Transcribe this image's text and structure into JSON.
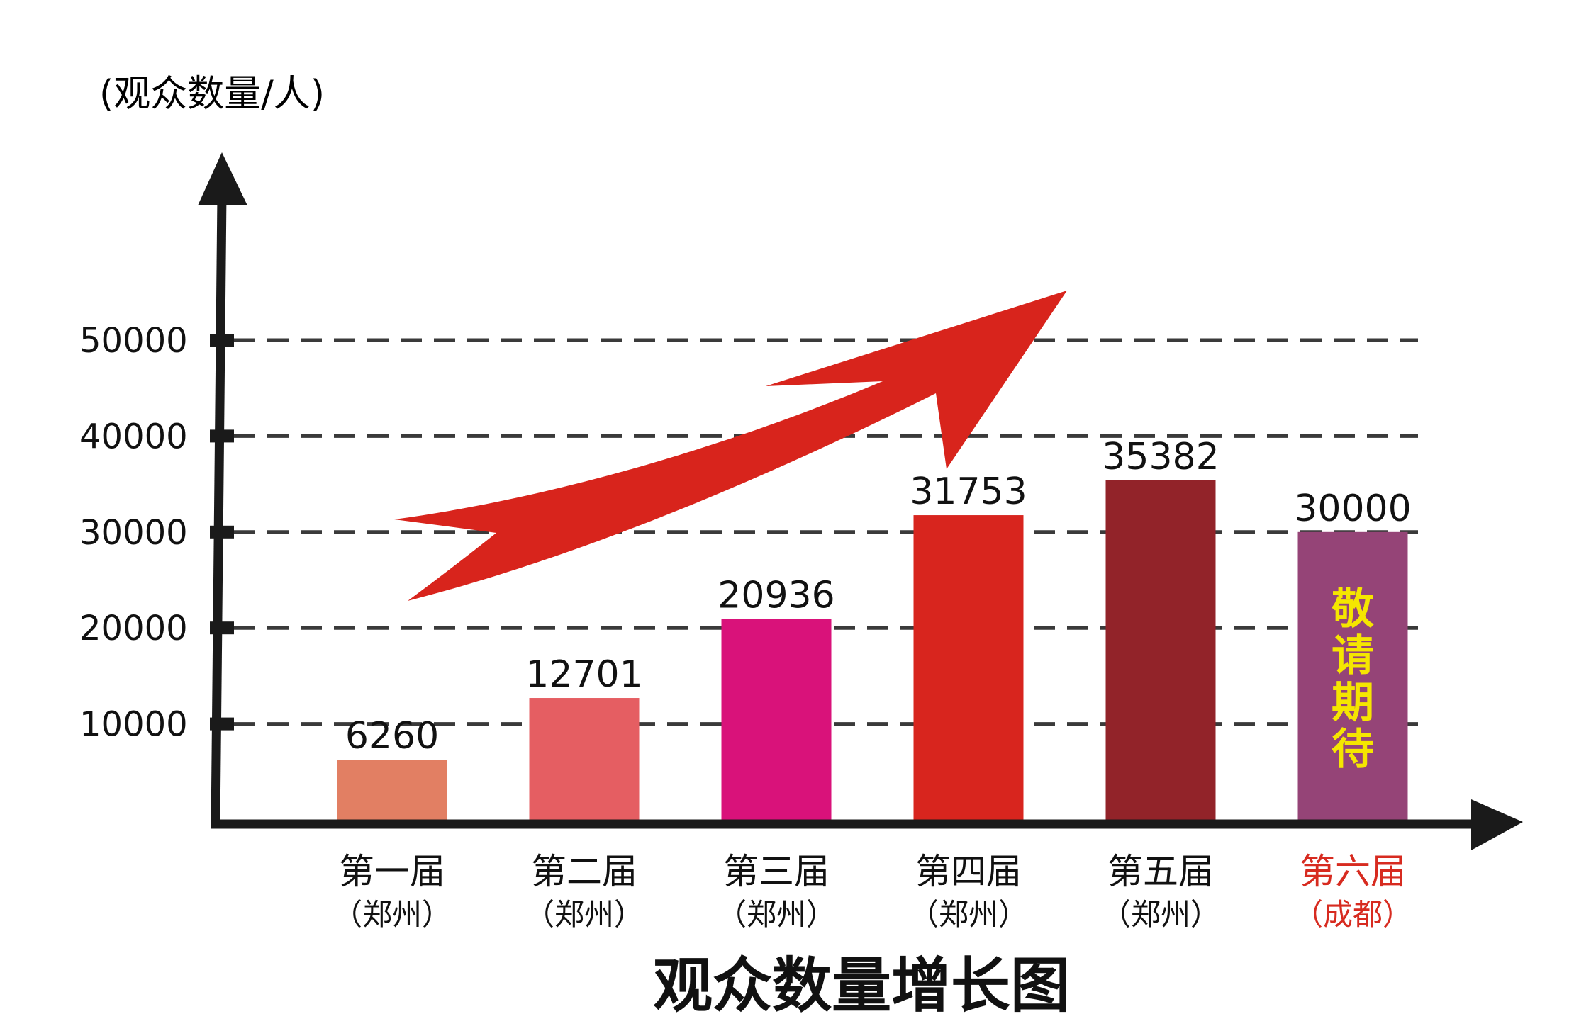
{
  "chart_data": {
    "type": "bar",
    "title": "观众数量增长图",
    "ylabel": "(观众数量/人)",
    "xlabel": "",
    "ylim": [
      0,
      50000
    ],
    "yticks": [
      10000,
      20000,
      30000,
      40000,
      50000
    ],
    "ytick_labels": [
      "10000",
      "20000",
      "30000",
      "40000",
      "50000"
    ],
    "grid": "dashed-horizontal",
    "categories": [
      "第一届",
      "第二届",
      "第三届",
      "第四届",
      "第五届",
      "第六届"
    ],
    "subcategories": [
      "（郑州）",
      "（郑州）",
      "（郑州）",
      "（郑州）",
      "（郑州）",
      "（成都）"
    ],
    "values": [
      6260,
      12701,
      20936,
      31753,
      35382,
      30000
    ],
    "value_labels": [
      "6260",
      "12701",
      "20936",
      "31753",
      "35382",
      "30000"
    ],
    "bar_colors": [
      "#e27f63",
      "#e55e62",
      "#d9127a",
      "#d8251e",
      "#922329",
      "#954477"
    ],
    "highlight_index": 5,
    "highlight_color": "#d72b20",
    "bar_annotation": {
      "index": 5,
      "text": [
        "敬",
        "请",
        "期",
        "待"
      ],
      "color": "#f5e600"
    },
    "decoration": "red-upward-trend-arrow"
  }
}
